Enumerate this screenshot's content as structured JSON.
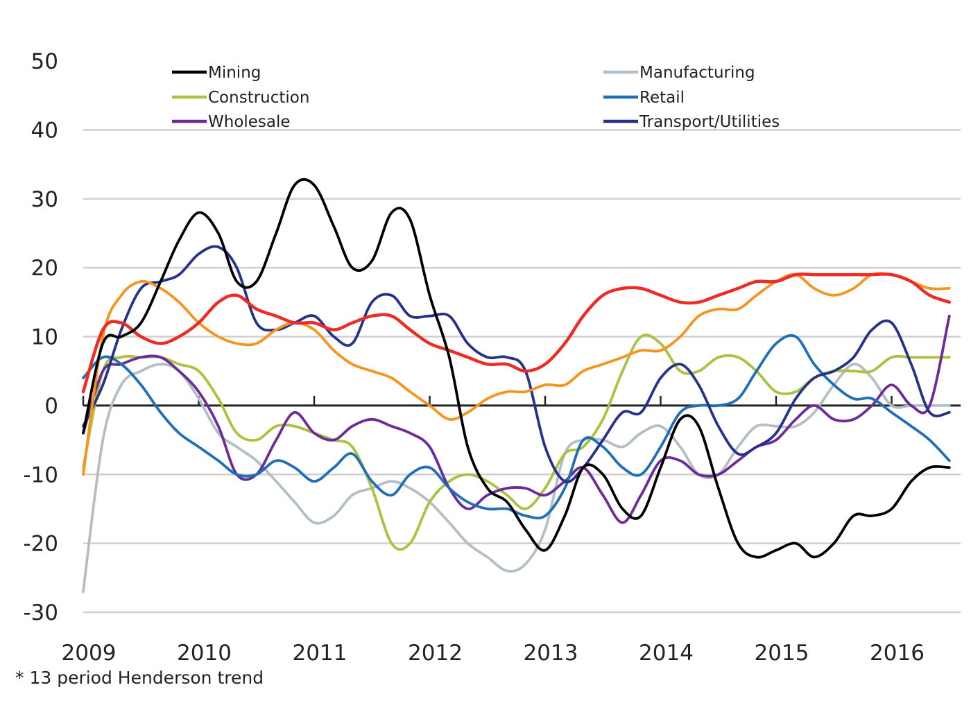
{
  "chart_data": {
    "type": "line",
    "title": "",
    "xlabel": "",
    "ylabel": "",
    "footnote": "* 13 period Henderson trend",
    "xlim": [
      2009.0,
      2016.55
    ],
    "ylim": [
      -30,
      50
    ],
    "yticks": [
      50,
      40,
      30,
      20,
      10,
      0,
      -10,
      -20,
      -30
    ],
    "ytick_labels": [
      "50",
      "40",
      "30",
      "20",
      "10",
      "0",
      "-10",
      "-20",
      "-30"
    ],
    "xticks": [
      2009,
      2010,
      2011,
      2012,
      2013,
      2014,
      2015,
      2016
    ],
    "xtick_labels": [
      "2009",
      "2010",
      "2011",
      "2012",
      "2013",
      "2014",
      "2015",
      "2016"
    ],
    "grid": "horizontal",
    "legend": "top",
    "x": [
      2009.0,
      2009.17,
      2009.33,
      2009.5,
      2009.67,
      2009.83,
      2010.0,
      2010.17,
      2010.33,
      2010.5,
      2010.67,
      2010.83,
      2011.0,
      2011.17,
      2011.33,
      2011.5,
      2011.67,
      2011.83,
      2012.0,
      2012.17,
      2012.33,
      2012.5,
      2012.67,
      2012.83,
      2013.0,
      2013.17,
      2013.33,
      2013.5,
      2013.67,
      2013.83,
      2014.0,
      2014.17,
      2014.33,
      2014.5,
      2014.67,
      2014.83,
      2015.0,
      2015.17,
      2015.33,
      2015.5,
      2015.67,
      2015.83,
      2016.0,
      2016.17,
      2016.33,
      2016.5
    ],
    "series": [
      {
        "name": "Mining",
        "color": "#000000",
        "in_legend": true,
        "values": [
          -4,
          9,
          10,
          12,
          18,
          24,
          28,
          25,
          18,
          18,
          25,
          32,
          32,
          26,
          20,
          21,
          28,
          27,
          16,
          7,
          -6,
          -12,
          -14,
          -18,
          -21,
          -16,
          -9,
          -10,
          -15,
          -16,
          -9,
          -2,
          -3,
          -12,
          -20,
          -22,
          -21,
          -20,
          -22,
          -20,
          -16,
          -16,
          -15,
          -11,
          -9,
          -9
        ]
      },
      {
        "name": "Manufacturing",
        "color": "#b3bec6",
        "in_legend": true,
        "values": [
          -27,
          -5,
          3,
          5,
          6,
          5,
          1,
          -4,
          -6,
          -8,
          -11,
          -14,
          -17,
          -16,
          -13,
          -12,
          -11,
          -12,
          -14,
          -17,
          -20,
          -22,
          -24,
          -23,
          -18,
          -7,
          -5,
          -5,
          -6,
          -4,
          -3,
          -6,
          -10,
          -10,
          -6,
          -3,
          -3,
          -3,
          -1,
          3,
          6,
          4,
          0,
          0,
          0,
          0
        ]
      },
      {
        "name": "Construction",
        "color": "#a9c23f",
        "in_legend": true,
        "values": [
          -9,
          5,
          7,
          7,
          7,
          6,
          5,
          1,
          -4,
          -5,
          -3,
          -3,
          -4,
          -5,
          -6,
          -12,
          -20,
          -20,
          -14,
          -11,
          -10,
          -11,
          -13,
          -15,
          -12,
          -7,
          -6,
          -2,
          5,
          10,
          9,
          5,
          5,
          7,
          7,
          5,
          2,
          2,
          4,
          5,
          5,
          5,
          7,
          7,
          7,
          7
        ]
      },
      {
        "name": "Retail",
        "color": "#1f6fb8",
        "in_legend": true,
        "values": [
          4,
          7,
          6,
          3,
          -1,
          -4,
          -6,
          -8,
          -10,
          -10,
          -8,
          -9,
          -11,
          -9,
          -7,
          -11,
          -13,
          -10,
          -9,
          -12,
          -14,
          -15,
          -15,
          -16,
          -16,
          -12,
          -5,
          -6,
          -9,
          -10,
          -6,
          -1,
          0,
          0,
          1,
          5,
          9,
          10,
          6,
          3,
          1,
          1,
          -1,
          -3,
          -5,
          -8
        ]
      },
      {
        "name": "Wholesale",
        "color": "#6b2c9a",
        "in_legend": true,
        "values": [
          -4,
          5,
          6,
          7,
          7,
          5,
          2,
          -3,
          -10,
          -10,
          -5,
          -1,
          -4,
          -5,
          -3,
          -2,
          -3,
          -4,
          -6,
          -12,
          -15,
          -13,
          -12,
          -12,
          -13,
          -11,
          -9,
          -13,
          -17,
          -13,
          -8,
          -8,
          -10,
          -10,
          -8,
          -6,
          -5,
          -2,
          0,
          -2,
          -2,
          0,
          3,
          0,
          0,
          13
        ]
      },
      {
        "name": "Transport/Utilities",
        "color": "#25318a",
        "in_legend": true,
        "values": [
          -3,
          3,
          11,
          17,
          18,
          19,
          22,
          23,
          20,
          12,
          11,
          12,
          13,
          10,
          9,
          15,
          16,
          13,
          13,
          13,
          9,
          7,
          7,
          5,
          -6,
          -11,
          -9,
          -5,
          -1,
          -1,
          4,
          6,
          3,
          -3,
          -7,
          -6,
          -4,
          1,
          4,
          5,
          7,
          11,
          12,
          6,
          -1,
          -1
        ]
      },
      {
        "name": "Series 7 (red)",
        "color": "#ee2b24",
        "in_legend": false,
        "values": [
          2,
          11,
          12,
          10,
          9,
          10,
          12,
          15,
          16,
          14,
          13,
          12,
          12,
          11,
          12,
          13,
          13,
          11,
          9,
          8,
          7,
          6,
          6,
          5,
          6,
          9,
          13,
          16,
          17,
          17,
          16,
          15,
          15,
          16,
          17,
          18,
          18,
          19,
          19,
          19,
          19,
          19,
          19,
          18,
          16,
          15
        ]
      },
      {
        "name": "Series 8 (orange)",
        "color": "#f7941d",
        "in_legend": false,
        "values": [
          -10,
          10,
          16,
          18,
          17,
          15,
          12,
          10,
          9,
          9,
          11,
          12,
          11,
          8,
          6,
          5,
          4,
          2,
          0,
          -2,
          -1,
          1,
          2,
          2,
          3,
          3,
          5,
          6,
          7,
          8,
          8,
          10,
          13,
          14,
          14,
          16,
          18,
          19,
          17,
          16,
          17,
          19,
          19,
          18,
          17,
          17
        ]
      }
    ]
  }
}
